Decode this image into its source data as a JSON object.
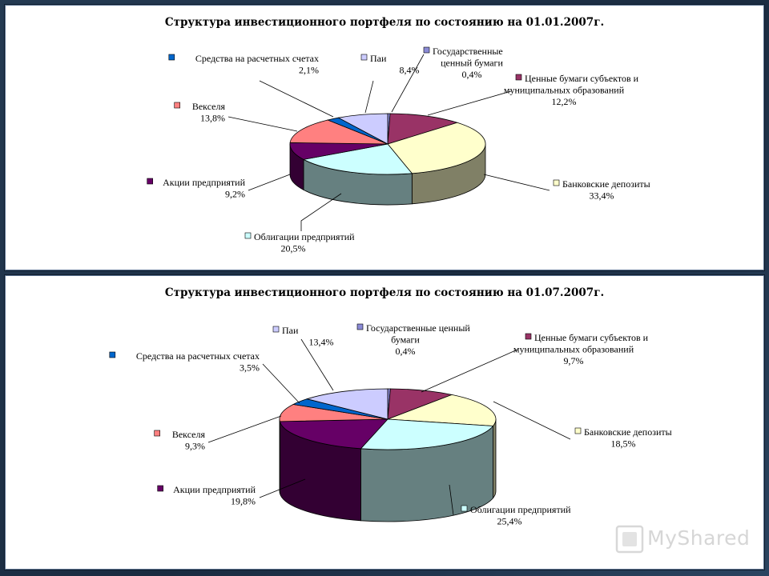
{
  "chart_data": [
    {
      "type": "pie",
      "title": "Структура инвестиционного портфеля по состоянию на 01.01.2007г.",
      "slices": [
        {
          "label": [
            "Государственные",
            "ценный бумаги"
          ],
          "value_label": "0,4%",
          "value": 0.4,
          "color": "#8b8bd6"
        },
        {
          "label": [
            "Ценные бумаги субъектов и",
            "муниципальных образований"
          ],
          "value_label": "12,2%",
          "value": 12.2,
          "color": "#993366"
        },
        {
          "label": [
            "Банковские депозиты"
          ],
          "value_label": "33,4%",
          "value": 33.4,
          "color": "#ffffcc"
        },
        {
          "label": [
            "Облигации предприятий"
          ],
          "value_label": "20,5%",
          "value": 20.5,
          "color": "#ccffff"
        },
        {
          "label": [
            "Акции предприятий"
          ],
          "value_label": "9,2%",
          "value": 9.2,
          "color": "#660066"
        },
        {
          "label": [
            "Векселя"
          ],
          "value_label": "13,8%",
          "value": 13.8,
          "color": "#ff8080"
        },
        {
          "label": [
            "Средства на расчетных счетах"
          ],
          "value_label": "2,1%",
          "value": 2.1,
          "color": "#0066cc"
        },
        {
          "label": [
            "Паи"
          ],
          "value_label": "8,4%",
          "value": 8.4,
          "color": "#ccccff"
        }
      ]
    },
    {
      "type": "pie",
      "title": "Структура инвестиционного портфеля по состоянию на 01.07.2007г.",
      "slices": [
        {
          "label": [
            "Государственные ценный",
            "бумаги"
          ],
          "value_label": "0,4%",
          "value": 0.4,
          "color": "#8b8bd6"
        },
        {
          "label": [
            "Ценные бумаги субъектов и",
            "муниципальных образований"
          ],
          "value_label": "9,7%",
          "value": 9.7,
          "color": "#993366"
        },
        {
          "label": [
            "Банковские депозиты"
          ],
          "value_label": "18,5%",
          "value": 18.5,
          "color": "#ffffcc"
        },
        {
          "label": [
            "Облигации предприятий"
          ],
          "value_label": "25,4%",
          "value": 25.4,
          "color": "#ccffff"
        },
        {
          "label": [
            "Акции предприятий"
          ],
          "value_label": "19,8%",
          "value": 19.8,
          "color": "#660066"
        },
        {
          "label": [
            "Векселя"
          ],
          "value_label": "9,3%",
          "value": 9.3,
          "color": "#ff8080"
        },
        {
          "label": [
            "Средства на расчетных счетах"
          ],
          "value_label": "3,5%",
          "value": 3.5,
          "color": "#0066cc"
        },
        {
          "label": [
            "Паи"
          ],
          "value_label": "13,4%",
          "value": 13.4,
          "color": "#ccccff"
        }
      ]
    }
  ],
  "watermark": {
    "text": "MyShared"
  }
}
